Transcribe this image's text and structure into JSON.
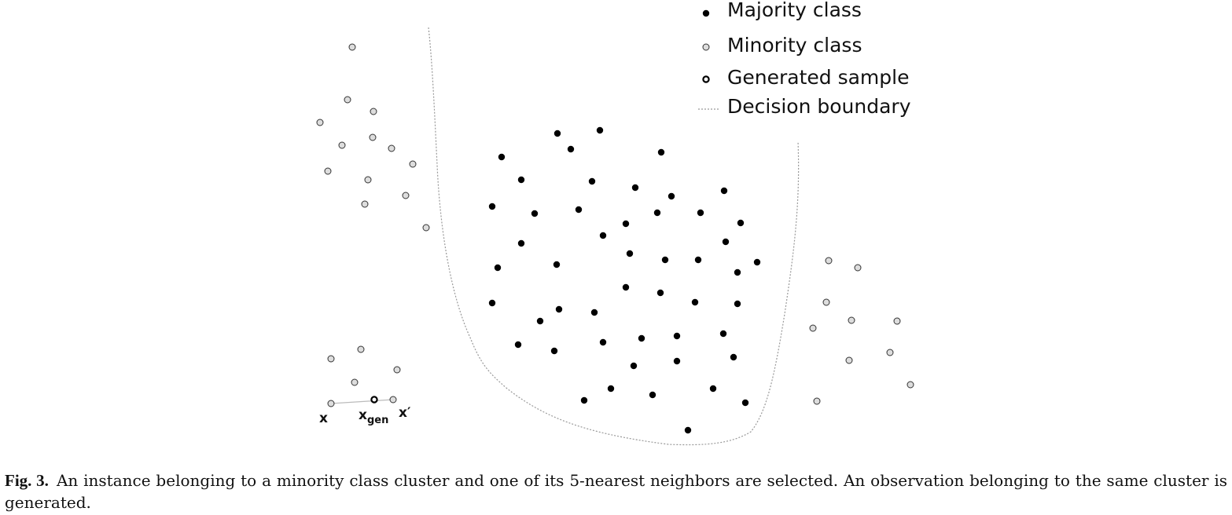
{
  "legend": [
    "Majority class",
    "Minority class",
    "Generated sample",
    "Decision boundary"
  ],
  "labels": {
    "x": "x",
    "xgen": "x",
    "xgen_sub": "gen",
    "xprime": "x′"
  },
  "caption": {
    "label": "Fig. 3.",
    "text": "An instance belonging to a minority class cluster and one of its 5-nearest neighbors are selected. An observation belonging to the same cluster is generated."
  }
}
